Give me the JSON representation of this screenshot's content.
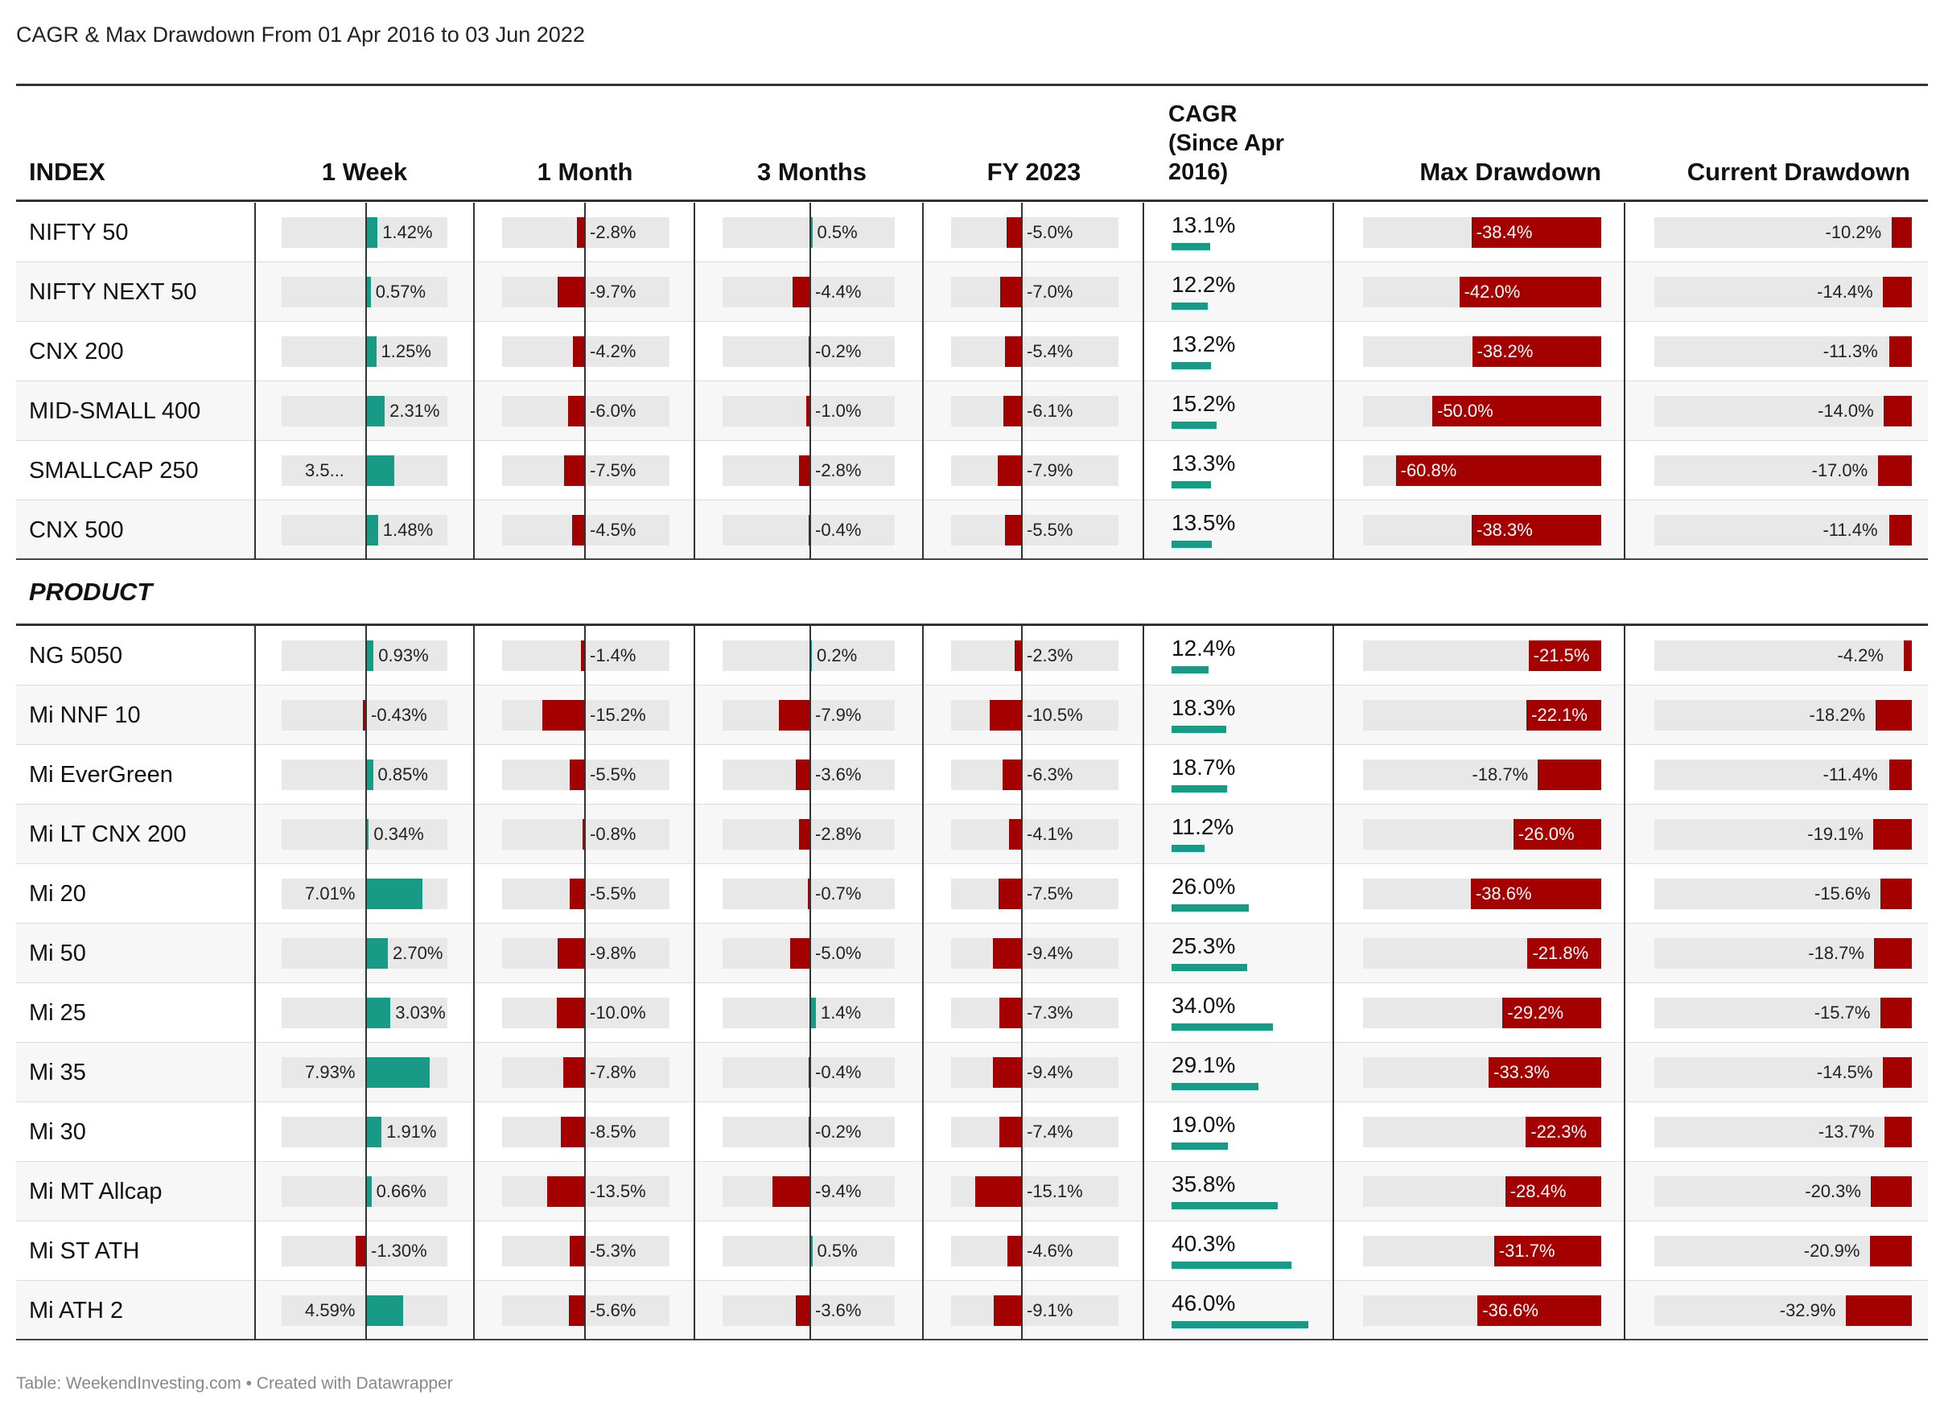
{
  "title": "CAGR & Max Drawdown From 01 Apr 2016 to 03 Jun 2022",
  "footer": "Table: WeekendInvesting.com • Created with Datawrapper",
  "colors": {
    "positive": "#189a86",
    "negative": "#a50000",
    "track": "#e8e8e8",
    "rule": "#333333"
  },
  "headers": {
    "index": "INDEX",
    "week": "1 Week",
    "month": "1 Month",
    "months3": "3 Months",
    "fy": "FY 2023",
    "cagr_line1": "CAGR",
    "cagr_line2": "(Since Apr",
    "cagr_line3": "2016)",
    "maxdd": "Max Drawdown",
    "curdd": "Current Drawdown"
  },
  "section_product": "PRODUCT",
  "chart_data": {
    "type": "table",
    "columns": [
      "1 Week",
      "1 Month",
      "3 Months",
      "FY 2023",
      "CAGR (Since Apr 2016)",
      "Max Drawdown",
      "Current Drawdown"
    ],
    "groups": [
      {
        "name": "INDEX",
        "rows": [
          {
            "name": "NIFTY 50",
            "week": 1.42,
            "month": -2.8,
            "m3": 0.5,
            "fy": -5.0,
            "cagr": 13.1,
            "maxdd": -38.4,
            "curdd": -10.2
          },
          {
            "name": "NIFTY NEXT 50",
            "week": 0.57,
            "month": -9.7,
            "m3": -4.4,
            "fy": -7.0,
            "cagr": 12.2,
            "maxdd": -42.0,
            "curdd": -14.4
          },
          {
            "name": "CNX 200",
            "week": 1.25,
            "month": -4.2,
            "m3": -0.2,
            "fy": -5.4,
            "cagr": 13.2,
            "maxdd": -38.2,
            "curdd": -11.3
          },
          {
            "name": "MID-SMALL 400",
            "week": 2.31,
            "month": -6.0,
            "m3": -1.0,
            "fy": -6.1,
            "cagr": 15.2,
            "maxdd": -50.0,
            "curdd": -14.0
          },
          {
            "name": "SMALLCAP 250",
            "week": 3.5,
            "week_label": "3.5...",
            "month": -7.5,
            "m3": -2.8,
            "fy": -7.9,
            "cagr": 13.3,
            "maxdd": -60.8,
            "curdd": -17.0
          },
          {
            "name": "CNX 500",
            "week": 1.48,
            "month": -4.5,
            "m3": -0.4,
            "fy": -5.5,
            "cagr": 13.5,
            "maxdd": -38.3,
            "curdd": -11.4
          }
        ]
      },
      {
        "name": "PRODUCT",
        "rows": [
          {
            "name": "NG 5050",
            "week": 0.93,
            "month": -1.4,
            "m3": 0.2,
            "fy": -2.3,
            "cagr": 12.4,
            "maxdd": -21.5,
            "curdd": -4.2
          },
          {
            "name": "Mi NNF 10",
            "week": -0.43,
            "month": -15.2,
            "m3": -7.9,
            "fy": -10.5,
            "cagr": 18.3,
            "maxdd": -22.1,
            "curdd": -18.2
          },
          {
            "name": "Mi EverGreen",
            "week": 0.85,
            "month": -5.5,
            "m3": -3.6,
            "fy": -6.3,
            "cagr": 18.7,
            "maxdd": -18.7,
            "curdd": -11.4
          },
          {
            "name": "Mi LT CNX 200",
            "week": 0.34,
            "month": -0.8,
            "m3": -2.8,
            "fy": -4.1,
            "cagr": 11.2,
            "maxdd": -26.0,
            "curdd": -19.1
          },
          {
            "name": "Mi 20",
            "week": 7.01,
            "month": -5.5,
            "m3": -0.7,
            "fy": -7.5,
            "cagr": 26.0,
            "maxdd": -38.6,
            "curdd": -15.6
          },
          {
            "name": "Mi 50",
            "week": 2.7,
            "month": -9.8,
            "m3": -5.0,
            "fy": -9.4,
            "cagr": 25.3,
            "maxdd": -21.8,
            "curdd": -18.7
          },
          {
            "name": "Mi 25",
            "week": 3.03,
            "month": -10.0,
            "m3": 1.4,
            "fy": -7.3,
            "cagr": 34.0,
            "maxdd": -29.2,
            "curdd": -15.7
          },
          {
            "name": "Mi 35",
            "week": 7.93,
            "month": -7.8,
            "m3": -0.4,
            "fy": -9.4,
            "cagr": 29.1,
            "maxdd": -33.3,
            "curdd": -14.5
          },
          {
            "name": "Mi 30",
            "week": 1.91,
            "month": -8.5,
            "m3": -0.2,
            "fy": -7.4,
            "cagr": 19.0,
            "maxdd": -22.3,
            "curdd": -13.7
          },
          {
            "name": "Mi MT Allcap",
            "week": 0.66,
            "month": -13.5,
            "m3": -9.4,
            "fy": -15.1,
            "cagr": 35.8,
            "maxdd": -28.4,
            "curdd": -20.3
          },
          {
            "name": "Mi ST ATH",
            "week": -1.3,
            "month": -5.3,
            "m3": 0.5,
            "fy": -4.6,
            "cagr": 40.3,
            "maxdd": -31.7,
            "curdd": -20.9
          },
          {
            "name": "Mi ATH 2",
            "week": 4.59,
            "month": -5.6,
            "m3": -3.6,
            "fy": -9.1,
            "cagr": 46.0,
            "maxdd": -36.6,
            "curdd": -32.9
          }
        ]
      }
    ]
  }
}
